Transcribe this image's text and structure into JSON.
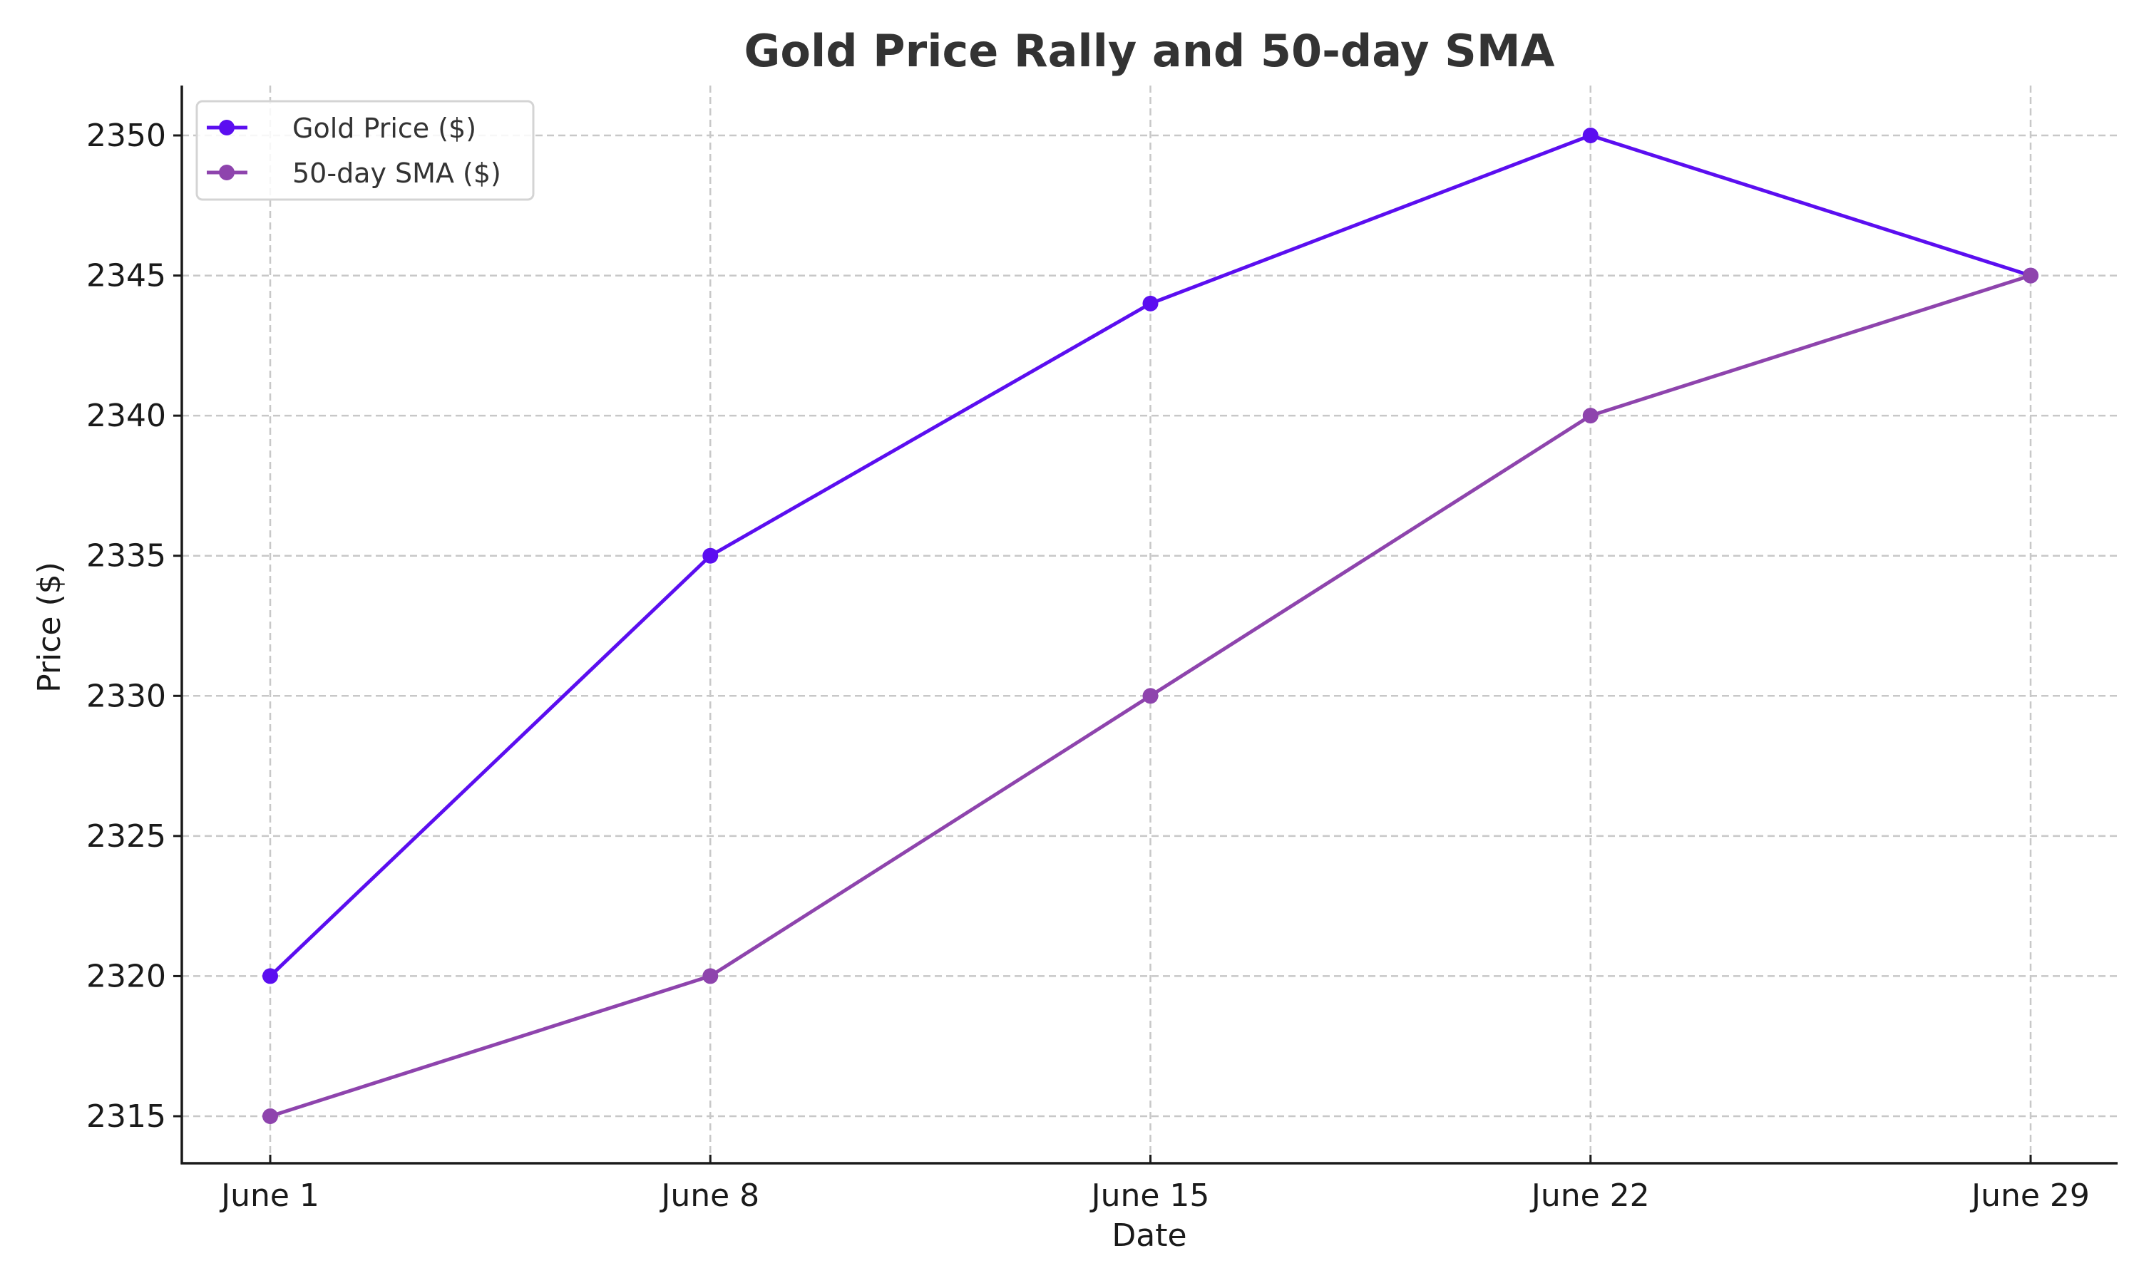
{
  "chart_data": {
    "type": "line",
    "title": "Gold Price Rally and 50-day SMA",
    "xlabel": "Date",
    "ylabel": "Price ($)",
    "categories": [
      "June 1",
      "June 8",
      "June 15",
      "June 22",
      "June 29"
    ],
    "ylim": [
      2313.3,
      2351.8
    ],
    "yticks": [
      2315,
      2320,
      2325,
      2330,
      2335,
      2340,
      2345,
      2350
    ],
    "grid": true,
    "legend_position": "top-left",
    "series": [
      {
        "name": "Gold Price ($)",
        "color": "#5b0ef0",
        "marker": "circle",
        "values": [
          2320,
          2335,
          2344,
          2350,
          2345
        ]
      },
      {
        "name": "50-day SMA ($)",
        "color": "#8e44ad",
        "marker": "circle",
        "values": [
          2315,
          2320,
          2330,
          2340,
          2345
        ]
      }
    ]
  }
}
